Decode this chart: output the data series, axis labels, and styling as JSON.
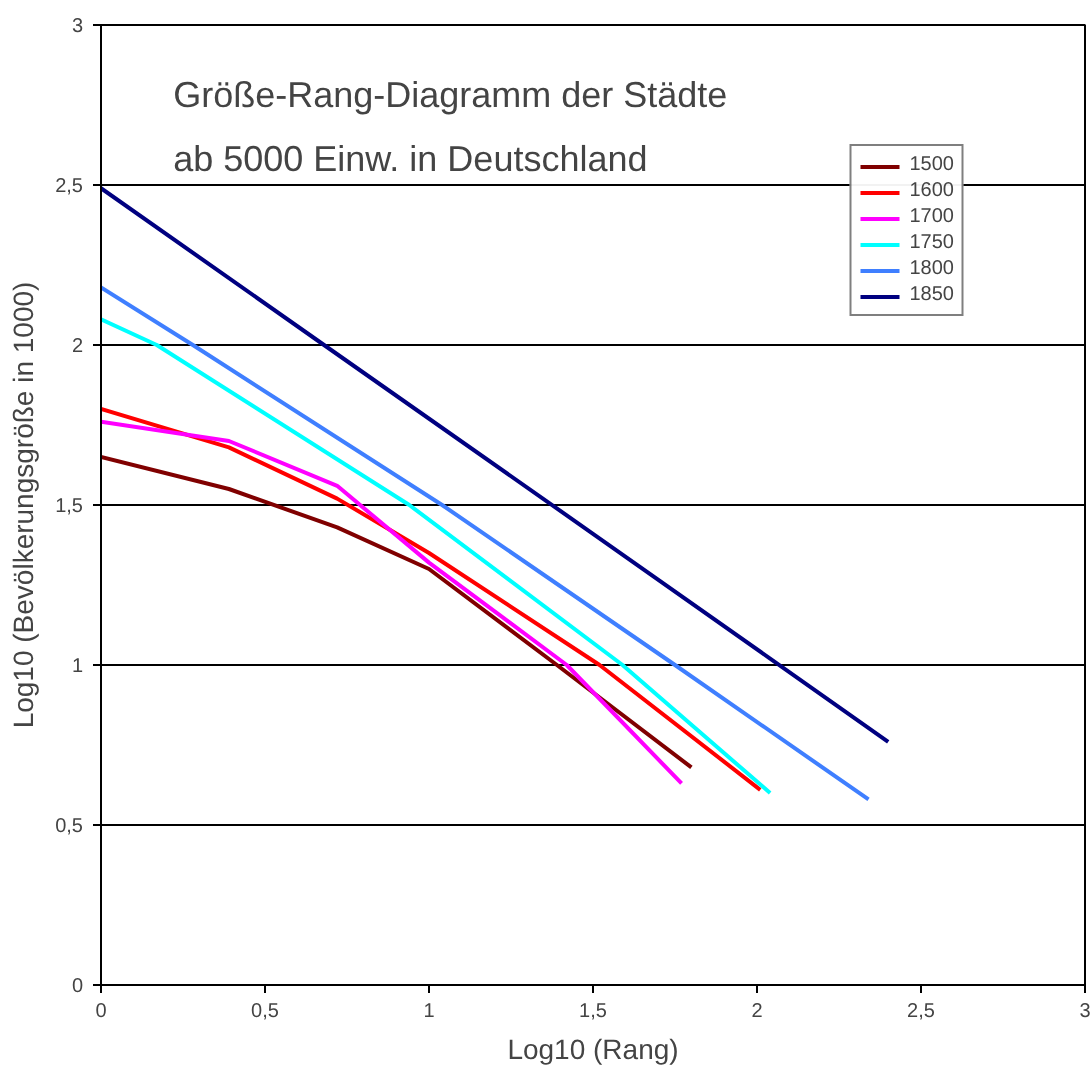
{
  "chart_data": {
    "type": "line",
    "title": "Größe-Rang-Diagramm der Städte\nab 5000 Einw. in Deutschland",
    "xlabel": "Log10 (Rang)",
    "ylabel": "Log10 (Bevölkerungsgröße in 1000)",
    "xlim": [
      0,
      3
    ],
    "ylim": [
      0,
      3
    ],
    "xticks": [
      0,
      {
        "value": 0.5,
        "label": "0,5"
      },
      1,
      {
        "value": 1.5,
        "label": "1,5"
      },
      2,
      {
        "value": 2.5,
        "label": "2,5"
      },
      3
    ],
    "yticks": [
      0,
      {
        "value": 0.5,
        "label": "0,5"
      },
      1,
      {
        "value": 1.5,
        "label": "1,5"
      },
      2,
      {
        "value": 2.5,
        "label": "2,5"
      },
      3
    ],
    "grid": "y",
    "legend": "top right",
    "line_style": "solid",
    "series": [
      {
        "name": "1500",
        "color": "#800000",
        "x": [
          0,
          0.39,
          0.72,
          1.0,
          1.39,
          1.8
        ],
        "values": [
          1.65,
          1.55,
          1.43,
          1.3,
          1.0,
          0.68
        ]
      },
      {
        "name": "1600",
        "color": "#ff0000",
        "x": [
          0,
          0.39,
          0.72,
          1.0,
          1.52,
          2.01
        ],
        "values": [
          1.8,
          1.68,
          1.52,
          1.35,
          1.0,
          0.61
        ]
      },
      {
        "name": "1700",
        "color": "#ff00ff",
        "x": [
          0,
          0.39,
          0.72,
          1.0,
          1.42,
          1.77
        ],
        "values": [
          1.76,
          1.7,
          1.56,
          1.32,
          1.0,
          0.63
        ]
      },
      {
        "name": "1750",
        "color": "#00ffff",
        "x": [
          0,
          0.17,
          0.94,
          1.59,
          2.04
        ],
        "values": [
          2.08,
          2.0,
          1.5,
          1.0,
          0.6
        ]
      },
      {
        "name": "1800",
        "color": "#3f7fff",
        "x": [
          0,
          0.28,
          1.04,
          1.75,
          2.34
        ],
        "values": [
          2.18,
          2.0,
          1.5,
          1.0,
          0.58
        ]
      },
      {
        "name": "1850",
        "color": "#000080",
        "x": [
          0,
          0.68,
          1.5,
          2.04,
          2.4
        ],
        "values": [
          2.49,
          2.0,
          1.41,
          1.02,
          0.76
        ]
      }
    ]
  }
}
